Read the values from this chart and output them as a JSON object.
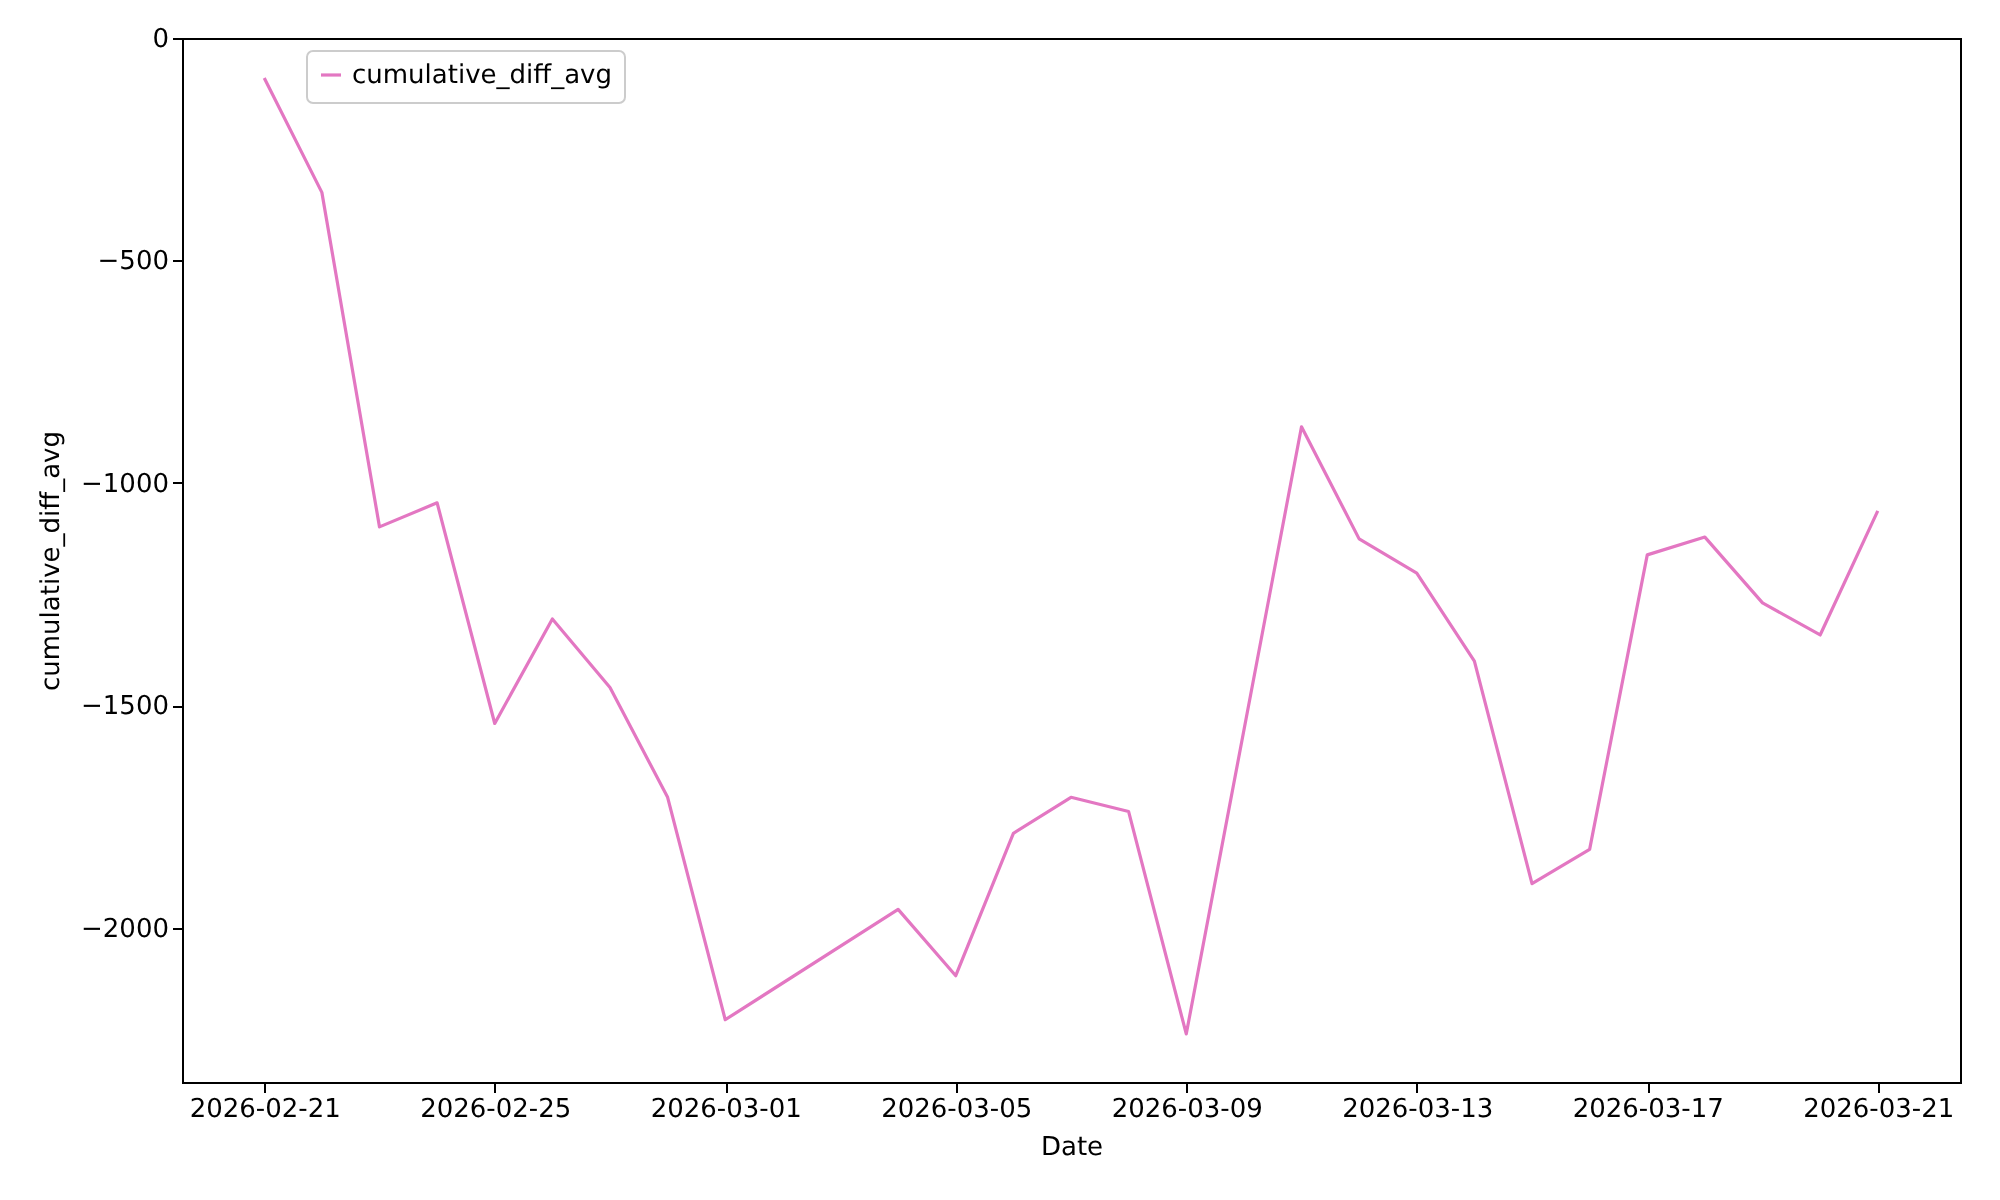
{
  "chart_data": {
    "type": "line",
    "xlabel": "Date",
    "ylabel": "cumulative_diff_avg",
    "x": [
      "2026-02-21",
      "2026-02-22",
      "2026-02-23",
      "2026-02-24",
      "2026-02-25",
      "2026-02-26",
      "2026-02-27",
      "2026-02-28",
      "2026-03-01",
      "2026-03-04",
      "2026-03-05",
      "2026-03-06",
      "2026-03-07",
      "2026-03-08",
      "2026-03-09",
      "2026-03-11",
      "2026-03-12",
      "2026-03-13",
      "2026-03-14",
      "2026-03-15",
      "2026-03-16",
      "2026-03-17",
      "2026-03-18",
      "2026-03-19",
      "2026-03-20",
      "2026-03-21"
    ],
    "series": [
      {
        "name": "cumulative_diff_avg",
        "color": "#e377c2",
        "values": [
          -90,
          -347,
          -1099,
          -1045,
          -1541,
          -1306,
          -1460,
          -1707,
          -2207,
          -1959,
          -2108,
          -1788,
          -1707,
          -1739,
          -2239,
          -874,
          -1126,
          -1203,
          -1401,
          -1901,
          -1824,
          -1162,
          -1122,
          -1270,
          -1342,
          -1063
        ]
      }
    ],
    "xlim": [
      "2026-02-19T13:45",
      "2026-03-22T10:15"
    ],
    "xticks": [
      "2026-02-21",
      "2026-02-25",
      "2026-03-01",
      "2026-03-05",
      "2026-03-09",
      "2026-03-13",
      "2026-03-17",
      "2026-03-21"
    ],
    "ylim": [
      -2347,
      0
    ],
    "yticks": [
      -2000,
      -1500,
      -1000,
      -500,
      0
    ],
    "grid": false,
    "legend": "top left",
    "marker": "none",
    "line_style": "solid"
  }
}
